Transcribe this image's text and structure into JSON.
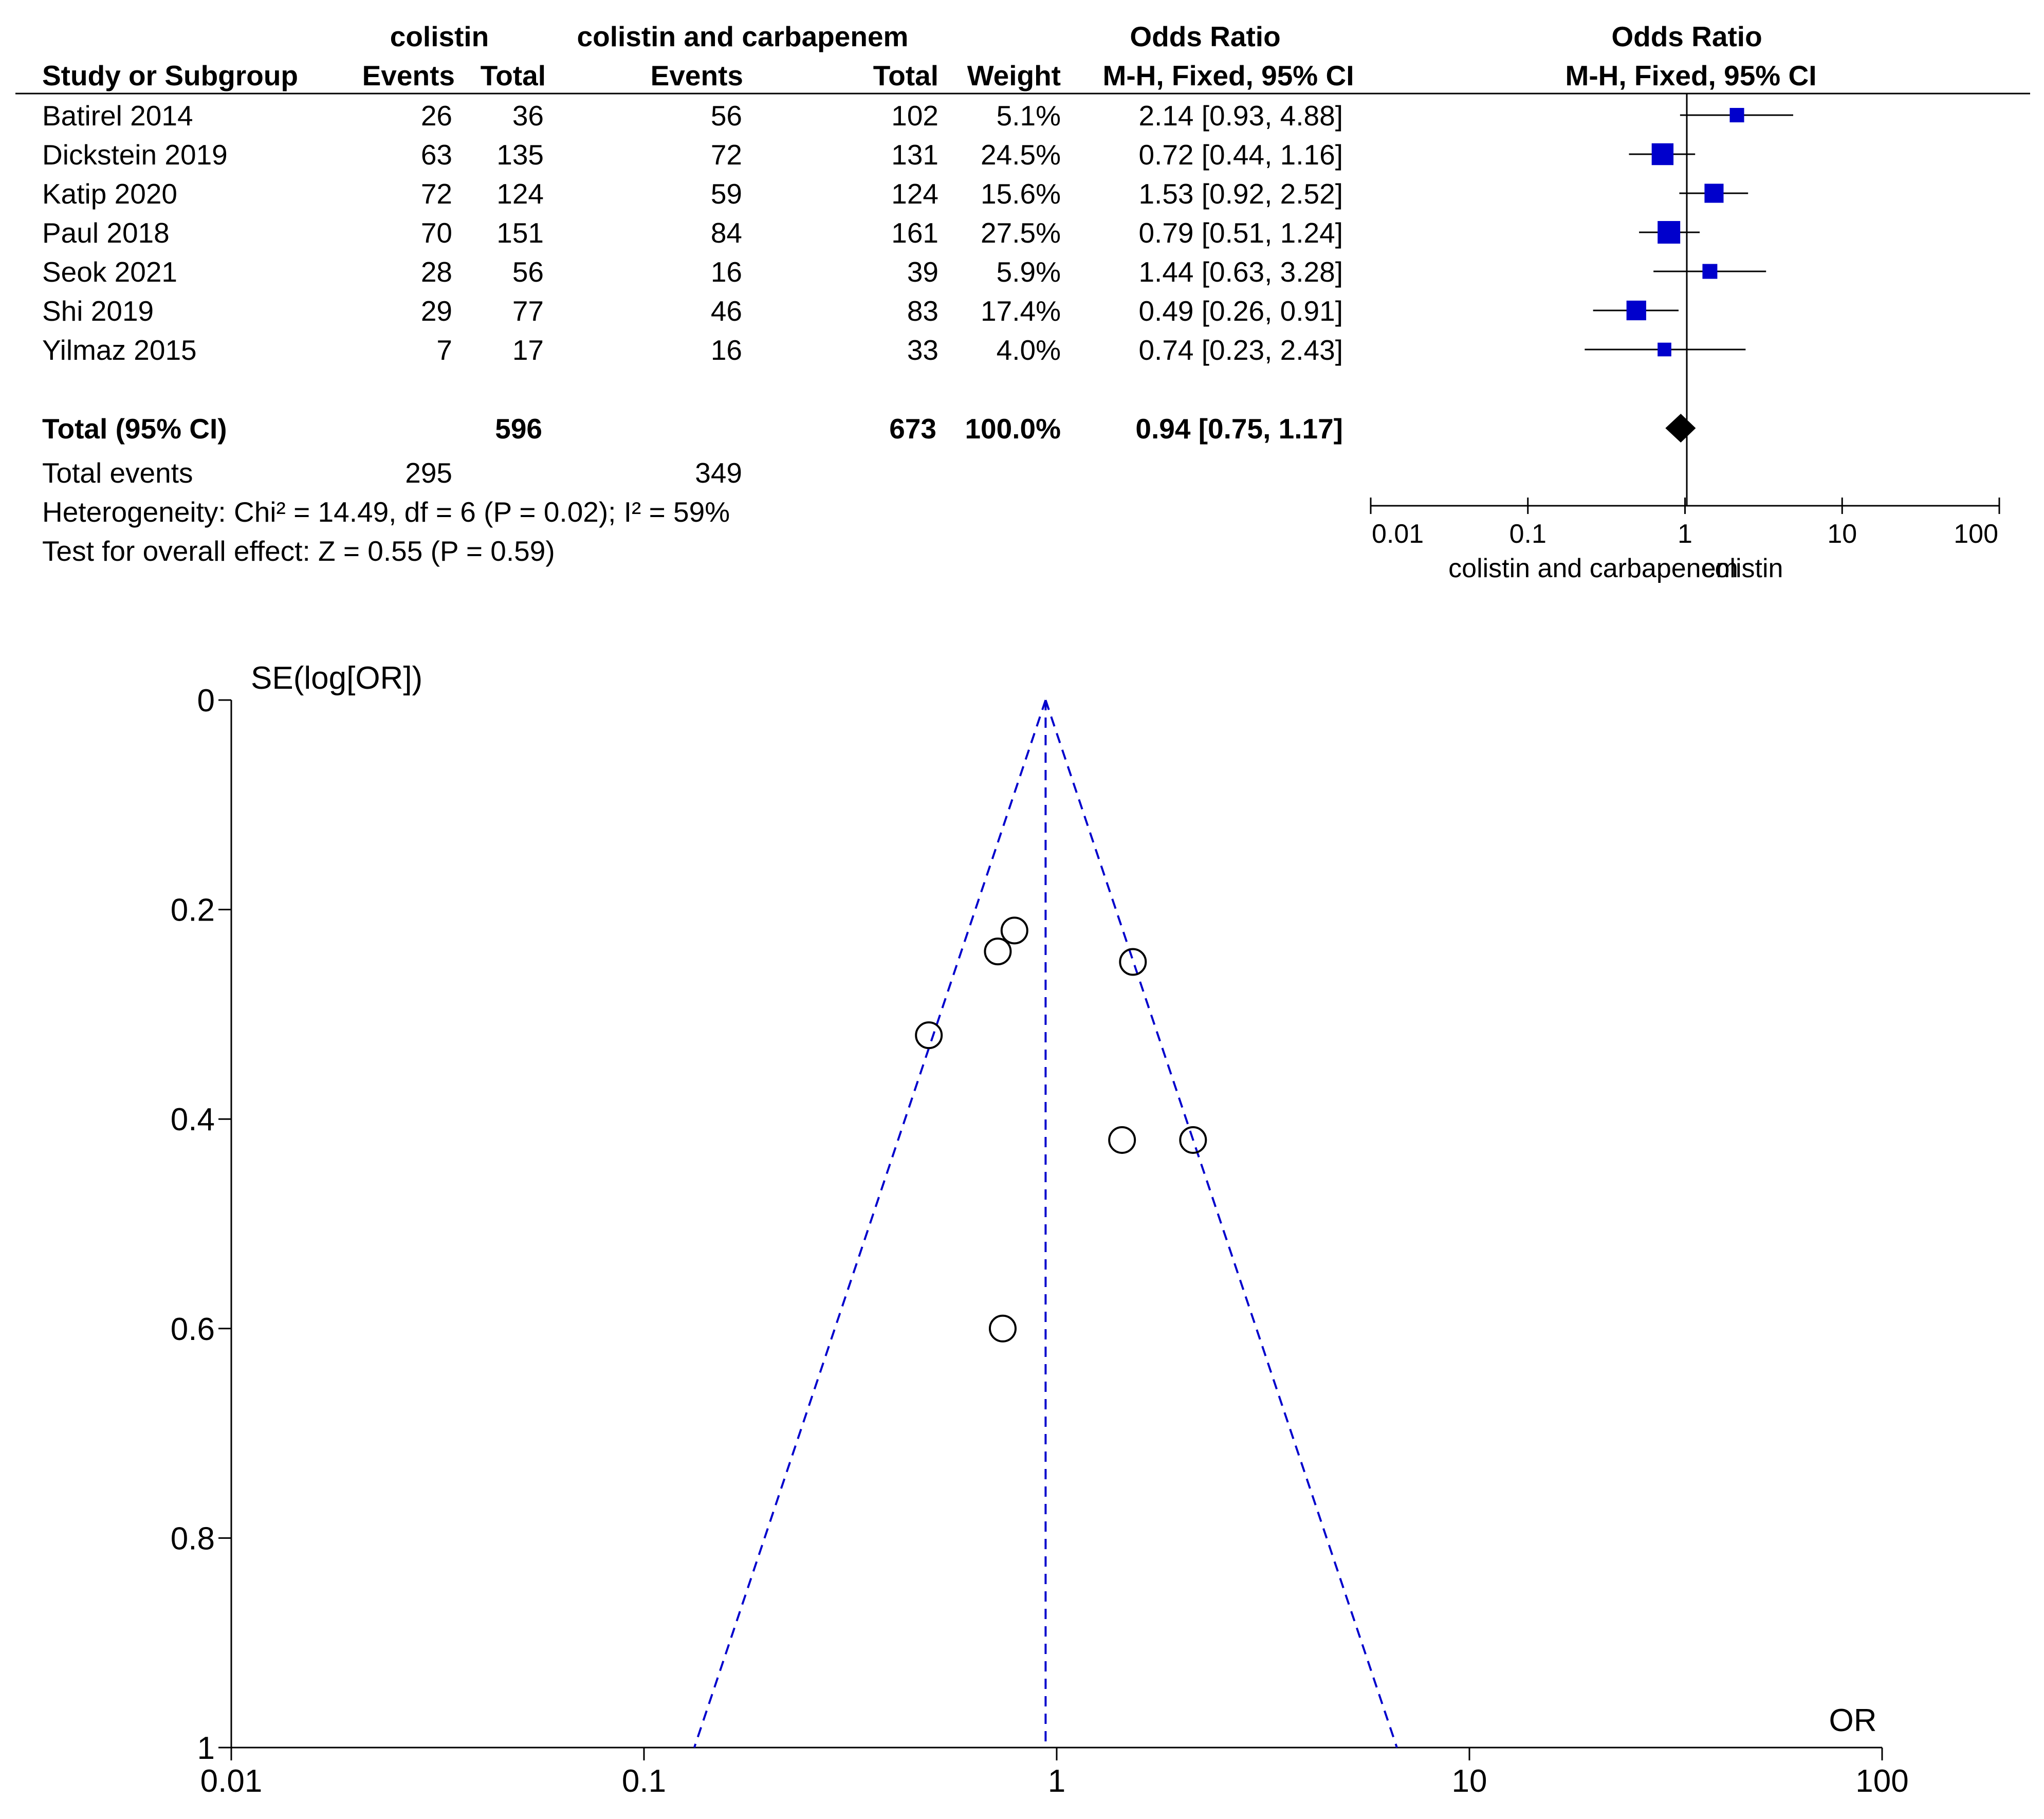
{
  "chart_data": [
    {
      "type": "table",
      "subtype": "forest-plot",
      "group_headers": {
        "experimental": "colistin",
        "control": "colistin and carbapenem",
        "odds_ratio_table": "Odds Ratio",
        "odds_ratio_plot": "Odds Ratio"
      },
      "column_headers": {
        "study": "Study or Subgroup",
        "exp_events": "Events",
        "exp_total": "Total",
        "ctl_events": "Events",
        "ctl_total": "Total",
        "weight": "Weight",
        "or_table": "M-H, Fixed, 95% CI",
        "or_plot": "M-H, Fixed, 95% CI"
      },
      "studies": [
        {
          "name": "Batirel 2014",
          "exp_events": "26",
          "exp_total": "36",
          "ctl_events": "56",
          "ctl_total": "102",
          "weight": "5.1%",
          "ci_text": "2.14 [0.93, 4.88]",
          "or": 2.14,
          "lo": 0.93,
          "hi": 4.88,
          "w": 5.1
        },
        {
          "name": "Dickstein 2019",
          "exp_events": "63",
          "exp_total": "135",
          "ctl_events": "72",
          "ctl_total": "131",
          "weight": "24.5%",
          "ci_text": "0.72 [0.44, 1.16]",
          "or": 0.72,
          "lo": 0.44,
          "hi": 1.16,
          "w": 24.5
        },
        {
          "name": "Katip 2020",
          "exp_events": "72",
          "exp_total": "124",
          "ctl_events": "59",
          "ctl_total": "124",
          "weight": "15.6%",
          "ci_text": "1.53 [0.92, 2.52]",
          "or": 1.53,
          "lo": 0.92,
          "hi": 2.52,
          "w": 15.6
        },
        {
          "name": "Paul 2018",
          "exp_events": "70",
          "exp_total": "151",
          "ctl_events": "84",
          "ctl_total": "161",
          "weight": "27.5%",
          "ci_text": "0.79 [0.51, 1.24]",
          "or": 0.79,
          "lo": 0.51,
          "hi": 1.24,
          "w": 27.5
        },
        {
          "name": "Seok 2021",
          "exp_events": "28",
          "exp_total": "56",
          "ctl_events": "16",
          "ctl_total": "39",
          "weight": "5.9%",
          "ci_text": "1.44 [0.63, 3.28]",
          "or": 1.44,
          "lo": 0.63,
          "hi": 3.28,
          "w": 5.9
        },
        {
          "name": "Shi 2019",
          "exp_events": "29",
          "exp_total": "77",
          "ctl_events": "46",
          "ctl_total": "83",
          "weight": "17.4%",
          "ci_text": "0.49 [0.26, 0.91]",
          "or": 0.49,
          "lo": 0.26,
          "hi": 0.91,
          "w": 17.4
        },
        {
          "name": "Yilmaz 2015",
          "exp_events": "7",
          "exp_total": "17",
          "ctl_events": "16",
          "ctl_total": "33",
          "weight": "4.0%",
          "ci_text": "0.74 [0.23, 2.43]",
          "or": 0.74,
          "lo": 0.23,
          "hi": 2.43,
          "w": 4.0
        }
      ],
      "total": {
        "label": "Total (95% CI)",
        "exp_total": "596",
        "ctl_total": "673",
        "weight": "100.0%",
        "ci_text": "0.94 [0.75, 1.17]",
        "or": 0.94,
        "lo": 0.75,
        "hi": 1.17
      },
      "total_events": {
        "label": "Total events",
        "exp": "295",
        "ctl": "349"
      },
      "heterogeneity": "Heterogeneity: Chi² = 14.49, df = 6 (P = 0.02); I² = 59%",
      "overall_effect": "Test for overall effect: Z = 0.55 (P = 0.59)",
      "axis": {
        "scale": "log",
        "range": [
          0.01,
          100
        ],
        "ticks": [
          0.01,
          0.1,
          1,
          10,
          100
        ],
        "tick_labels": [
          "0.01",
          "0.1",
          "1",
          "10",
          "100"
        ],
        "favours_left": "colistin and carbapenem",
        "favours_right": "colistin"
      },
      "marker_color": "#0000cc"
    },
    {
      "type": "scatter",
      "subtype": "funnel-plot",
      "xlabel": "OR",
      "ylabel": "SE(log[OR])",
      "x_scale": "log",
      "xlim": [
        0.01,
        100
      ],
      "ylim": [
        0,
        1
      ],
      "y_inverted": true,
      "x_ticks": [
        0.01,
        0.1,
        1,
        10,
        100
      ],
      "x_tick_labels": [
        "0.01",
        "0.1",
        "1",
        "10",
        "100"
      ],
      "y_ticks": [
        0,
        0.2,
        0.4,
        0.6,
        0.8,
        1
      ],
      "y_tick_labels": [
        "0",
        "0.2",
        "0.4",
        "0.6",
        "0.8",
        "1"
      ],
      "pooled_or": 0.94,
      "funnel_color": "#0000cc",
      "points": [
        {
          "study": "Batirel 2014",
          "or": 2.14,
          "se": 0.42
        },
        {
          "study": "Dickstein 2019",
          "or": 0.72,
          "se": 0.24
        },
        {
          "study": "Katip 2020",
          "or": 1.53,
          "se": 0.25
        },
        {
          "study": "Paul 2018",
          "or": 0.79,
          "se": 0.22
        },
        {
          "study": "Seok 2021",
          "or": 1.44,
          "se": 0.42
        },
        {
          "study": "Shi 2019",
          "or": 0.49,
          "se": 0.32
        },
        {
          "study": "Yilmaz 2015",
          "or": 0.74,
          "se": 0.6
        }
      ]
    }
  ]
}
